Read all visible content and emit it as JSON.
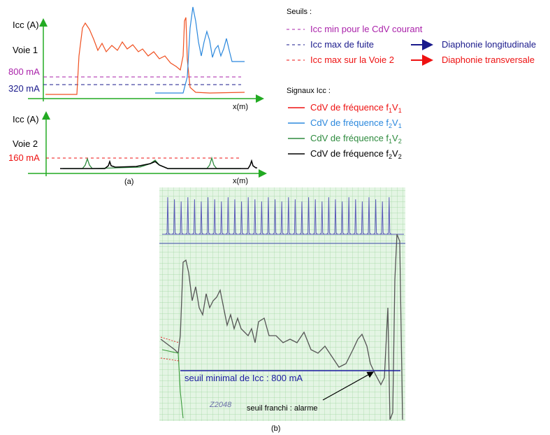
{
  "panel_a": {
    "voie1": {
      "y_axis_label": "Icc (A)",
      "lane_label": "Voie 1",
      "levels": [
        "800 mA",
        "320 mA"
      ],
      "x_axis_label": "x(m)"
    },
    "voie2": {
      "y_axis_label": "Icc (A)",
      "lane_label": "Voie 2",
      "levels": [
        "160 mA"
      ],
      "x_axis_label": "x(m)"
    },
    "caption": "(a)"
  },
  "legend": {
    "thresholds_title": "Seuils :",
    "thresholds": [
      {
        "label": "Icc min pour le CdV courant"
      },
      {
        "label": "Icc max de fuite",
        "arrow_label": "Diaphonie longitudinale"
      },
      {
        "label": "Icc max sur la Voie 2",
        "arrow_label": "Diaphonie transversale"
      }
    ],
    "signals_title": "Signaux Icc :",
    "signals": [
      {
        "text": "CdV de fréquence f",
        "f": "1",
        "v": "V",
        "n": "1"
      },
      {
        "text": "CdV de fréquence f",
        "f": "2",
        "v": "V",
        "n": "1"
      },
      {
        "text": "CdV de fréquence f",
        "f": "1",
        "v": "V",
        "n": "2"
      },
      {
        "text": "CdV de fréquence f",
        "f": "2",
        "v": "V",
        "n": "2"
      }
    ]
  },
  "panel_b": {
    "threshold_label": "seuil minimal de Icc : 800 mA",
    "alarm_label": "seuil franchi : alarme",
    "stamp": "Z2048",
    "caption": "(b)"
  }
}
